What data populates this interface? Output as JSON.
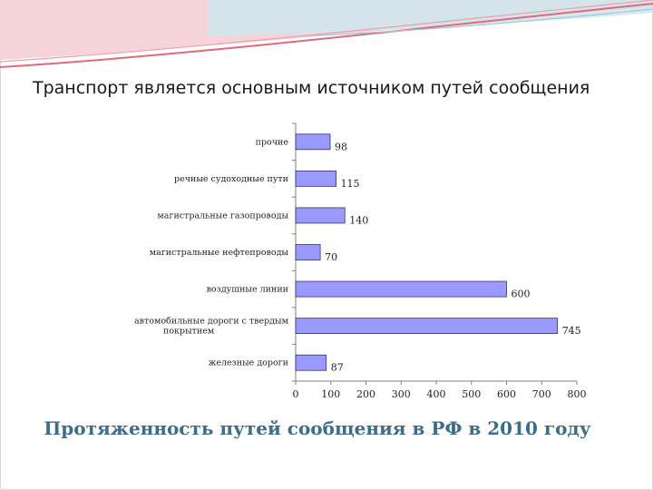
{
  "slide": {
    "heading": "Транспорт является основным источником путей сообщения"
  },
  "colors": {
    "bar_fill": "#9999ff",
    "bar_stroke": "#333366",
    "title": "#3c6e8a",
    "swoosh_red": "#e06a78",
    "swoosh_pink": "#f3c2cb",
    "swoosh_teal": "#bfe0e8"
  },
  "chart_data": {
    "type": "bar",
    "orientation": "horizontal",
    "title": "Протяженность путей сообщения в РФ в 2010 году",
    "xlabel": "",
    "ylabel": "",
    "xlim": [
      0,
      800
    ],
    "x_ticks": [
      0,
      100,
      200,
      300,
      400,
      500,
      600,
      700,
      800
    ],
    "grid": false,
    "legend": "none",
    "categories": [
      "прочие",
      "речные судоходные пути",
      "магистральные газопроводы",
      "магистральные нефтепроводы",
      "воздушные линии",
      "автомобильные дороги с твердым покрытием",
      "железные дороги"
    ],
    "category_lines": [
      [
        "прочие"
      ],
      [
        "речные судоходные пути"
      ],
      [
        "магистральные газопроводы"
      ],
      [
        "магистральные нефтепроводы"
      ],
      [
        "воздушные линии"
      ],
      [
        "автомобильные дороги с твердым",
        "покрытием"
      ],
      [
        "железные дороги"
      ]
    ],
    "values": [
      98,
      115,
      140,
      70,
      600,
      745,
      87
    ],
    "data_labels": [
      "98",
      "115",
      "140",
      "70",
      "600",
      "745",
      "87"
    ]
  }
}
